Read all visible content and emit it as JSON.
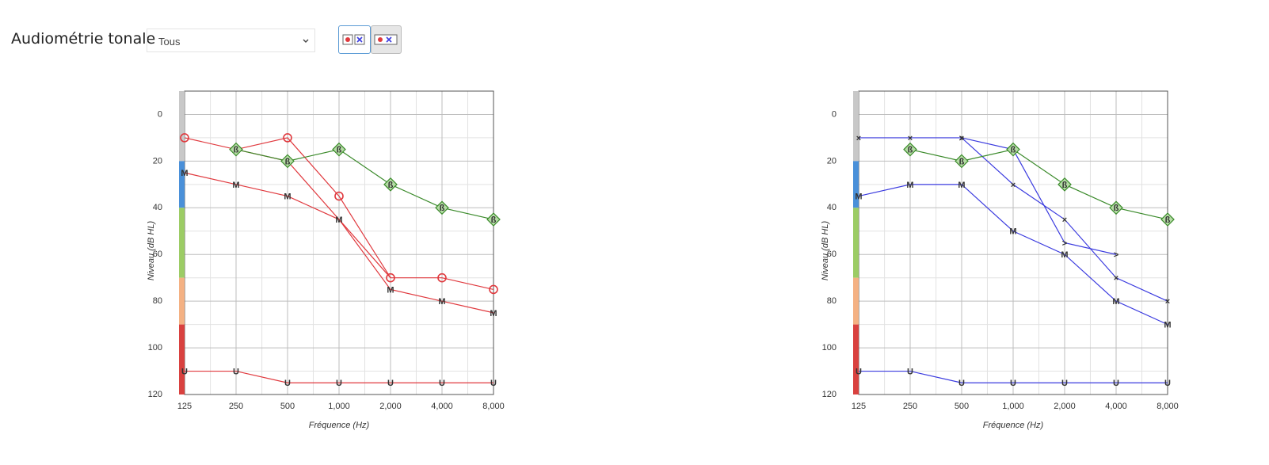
{
  "header": {
    "title": "Audiométrie tonale",
    "select": "Tous"
  },
  "chart_data": [
    {
      "type": "line",
      "xlabel": "Fréquence (Hz)",
      "ylabel": "Niveau (dB HL)",
      "xscale": "log",
      "xlim": [
        125,
        8000
      ],
      "xticks": [
        125,
        250,
        500,
        {
          "value": 1000,
          "label": "1,000"
        },
        {
          "value": 2000,
          "label": "2,000"
        },
        {
          "value": 4000,
          "label": "4,000"
        },
        {
          "value": 8000,
          "label": "8,000"
        }
      ],
      "x_minor_ticks": [
        177,
        354,
        707,
        1414,
        2828,
        5657
      ],
      "ylim": [
        -10,
        120
      ],
      "y_inverted": true,
      "yticks": [
        0,
        20,
        40,
        60,
        80,
        100,
        120
      ],
      "y_minor_ticks": [
        -10,
        10,
        30,
        50,
        70,
        90,
        110
      ],
      "grid": true,
      "bands": [
        {
          "from": -10,
          "to": 20,
          "color": "#c8c8c8"
        },
        {
          "from": 20,
          "to": 40,
          "color": "#4a90d9"
        },
        {
          "from": 40,
          "to": 70,
          "color": "#9ccc65"
        },
        {
          "from": 70,
          "to": 90,
          "color": "#f4b183"
        },
        {
          "from": 90,
          "to": 120,
          "color": "#d9413f"
        }
      ],
      "series": [
        {
          "color": "#e0393e",
          "marker": "circle",
          "x": [
            125,
            250,
            500,
            1000,
            2000,
            4000,
            8000
          ],
          "values": [
            10,
            15,
            10,
            35,
            70,
            70,
            75
          ]
        },
        {
          "color": "#e0393e",
          "marker": "none",
          "x": [
            250,
            500,
            2000
          ],
          "values": [
            15,
            20,
            70
          ]
        },
        {
          "color": "#e0393e",
          "marker": "M",
          "x": [
            125,
            250,
            500,
            1000,
            2000,
            4000,
            8000
          ],
          "values": [
            25,
            30,
            35,
            45,
            75,
            80,
            85
          ]
        },
        {
          "color": "#e0393e",
          "marker": "U",
          "x": [
            125,
            250,
            500,
            1000,
            2000,
            4000,
            8000
          ],
          "values": [
            110,
            110,
            115,
            115,
            115,
            115,
            115
          ]
        },
        {
          "color": "#3a8a2a",
          "marker": "ß",
          "marker_shape": "diamond",
          "x": [
            250,
            500,
            1000,
            2000,
            4000,
            8000
          ],
          "values": [
            15,
            20,
            15,
            30,
            40,
            45
          ]
        }
      ]
    },
    {
      "type": "line",
      "xlabel": "Fréquence (Hz)",
      "ylabel": "Niveau (dB HL)",
      "xscale": "log",
      "xlim": [
        125,
        8000
      ],
      "xticks": [
        125,
        250,
        500,
        {
          "value": 1000,
          "label": "1,000"
        },
        {
          "value": 2000,
          "label": "2,000"
        },
        {
          "value": 4000,
          "label": "4,000"
        },
        {
          "value": 8000,
          "label": "8,000"
        }
      ],
      "x_minor_ticks": [
        177,
        354,
        707,
        1414,
        2828,
        5657
      ],
      "ylim": [
        -10,
        120
      ],
      "y_inverted": true,
      "yticks": [
        0,
        20,
        40,
        60,
        80,
        100,
        120
      ],
      "y_minor_ticks": [
        -10,
        10,
        30,
        50,
        70,
        90,
        110
      ],
      "grid": true,
      "bands": [
        {
          "from": -10,
          "to": 20,
          "color": "#c8c8c8"
        },
        {
          "from": 20,
          "to": 40,
          "color": "#4a90d9"
        },
        {
          "from": 40,
          "to": 70,
          "color": "#9ccc65"
        },
        {
          "from": 70,
          "to": 90,
          "color": "#f4b183"
        },
        {
          "from": 90,
          "to": 120,
          "color": "#d9413f"
        }
      ],
      "series": [
        {
          "color": "#3b3bdf",
          "marker": "×",
          "x": [
            125,
            250,
            500,
            1000,
            2000,
            4000,
            8000
          ],
          "values": [
            10,
            10,
            10,
            30,
            45,
            70,
            80
          ]
        },
        {
          "color": "#3b3bdf",
          "marker": ">",
          "x": [
            500,
            1000,
            2000,
            4000
          ],
          "values": [
            10,
            15,
            55,
            60
          ]
        },
        {
          "color": "#3b3bdf",
          "marker": "M",
          "x": [
            125,
            250,
            500,
            1000,
            2000,
            4000,
            8000
          ],
          "values": [
            35,
            30,
            30,
            50,
            60,
            80,
            90
          ]
        },
        {
          "color": "#3b3bdf",
          "marker": "U",
          "x": [
            125,
            250,
            500,
            1000,
            2000,
            4000,
            8000
          ],
          "values": [
            110,
            110,
            115,
            115,
            115,
            115,
            115
          ]
        },
        {
          "color": "#3a8a2a",
          "marker": "ß",
          "marker_shape": "diamond",
          "x": [
            250,
            500,
            1000,
            2000,
            4000,
            8000
          ],
          "values": [
            15,
            20,
            15,
            30,
            40,
            45
          ]
        }
      ]
    }
  ]
}
